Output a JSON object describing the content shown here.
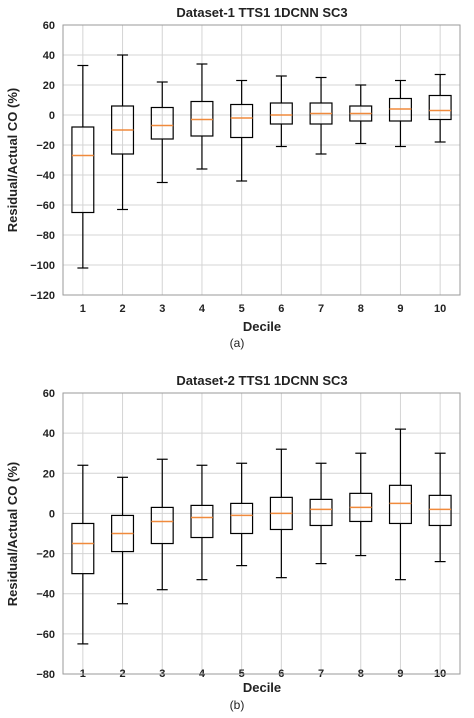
{
  "chart_data": [
    {
      "type": "box",
      "title": "Dataset-1 TTS1 1DCNN SC3",
      "xlabel": "Decile",
      "ylabel": "Residual/Actual CO (%)",
      "caption": "(a)",
      "ylim": [
        -120,
        60
      ],
      "yticks": [
        60,
        40,
        20,
        0,
        -20,
        -40,
        -60,
        -80,
        -100,
        -120
      ],
      "ytick_labels": [
        "60",
        "40",
        "20",
        "0",
        "−20",
        "−40",
        "−60",
        "−80",
        "−100",
        "−120"
      ],
      "categories": [
        "1",
        "2",
        "3",
        "4",
        "5",
        "6",
        "7",
        "8",
        "9",
        "10"
      ],
      "grid": true,
      "boxes": [
        {
          "whislo": -102,
          "q1": -65,
          "med": -27,
          "q3": -8,
          "whishi": 33
        },
        {
          "whislo": -63,
          "q1": -26,
          "med": -10,
          "q3": 6,
          "whishi": 40
        },
        {
          "whislo": -45,
          "q1": -16,
          "med": -7,
          "q3": 5,
          "whishi": 22
        },
        {
          "whislo": -36,
          "q1": -14,
          "med": -3,
          "q3": 9,
          "whishi": 34
        },
        {
          "whislo": -44,
          "q1": -15,
          "med": -2,
          "q3": 7,
          "whishi": 23
        },
        {
          "whislo": -21,
          "q1": -6,
          "med": 0,
          "q3": 8,
          "whishi": 26
        },
        {
          "whislo": -26,
          "q1": -6,
          "med": 1,
          "q3": 8,
          "whishi": 25
        },
        {
          "whislo": -19,
          "q1": -4,
          "med": 1,
          "q3": 6,
          "whishi": 20
        },
        {
          "whislo": -21,
          "q1": -4,
          "med": 4,
          "q3": 11,
          "whishi": 23
        },
        {
          "whislo": -18,
          "q1": -3,
          "med": 3,
          "q3": 13,
          "whishi": 27
        }
      ]
    },
    {
      "type": "box",
      "title": "Dataset-2 TTS1 1DCNN SC3",
      "xlabel": "Decile",
      "ylabel": "Residual/Actual CO (%)",
      "caption": "(b)",
      "ylim": [
        -80,
        60
      ],
      "yticks": [
        60,
        40,
        20,
        0,
        -20,
        -40,
        -60,
        -80
      ],
      "ytick_labels": [
        "60",
        "40",
        "20",
        "0",
        "−20",
        "−40",
        "−60",
        "−80"
      ],
      "categories": [
        "1",
        "2",
        "3",
        "4",
        "5",
        "6",
        "7",
        "8",
        "9",
        "10"
      ],
      "grid": true,
      "boxes": [
        {
          "whislo": -65,
          "q1": -30,
          "med": -15,
          "q3": -5,
          "whishi": 24
        },
        {
          "whislo": -45,
          "q1": -19,
          "med": -10,
          "q3": -1,
          "whishi": 18
        },
        {
          "whislo": -38,
          "q1": -15,
          "med": -4,
          "q3": 3,
          "whishi": 27
        },
        {
          "whislo": -33,
          "q1": -12,
          "med": -2,
          "q3": 4,
          "whishi": 24
        },
        {
          "whislo": -26,
          "q1": -10,
          "med": -1,
          "q3": 5,
          "whishi": 25
        },
        {
          "whislo": -32,
          "q1": -8,
          "med": 0,
          "q3": 8,
          "whishi": 32
        },
        {
          "whislo": -25,
          "q1": -6,
          "med": 2,
          "q3": 7,
          "whishi": 25
        },
        {
          "whislo": -21,
          "q1": -4,
          "med": 3,
          "q3": 10,
          "whishi": 30
        },
        {
          "whislo": -33,
          "q1": -5,
          "med": 5,
          "q3": 14,
          "whishi": 42
        },
        {
          "whislo": -24,
          "q1": -6,
          "med": 2,
          "q3": 9,
          "whishi": 30
        }
      ]
    }
  ]
}
